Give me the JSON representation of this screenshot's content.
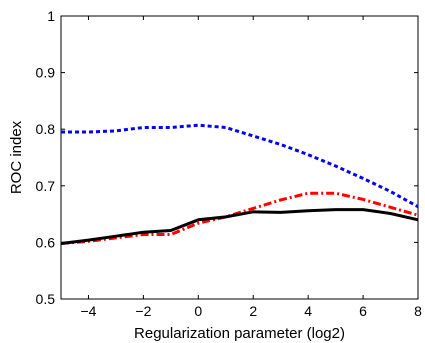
{
  "chart_data": {
    "type": "line",
    "title": "",
    "xlabel": "Regularization parameter (log2)",
    "ylabel": "ROC index",
    "xlim": [
      -5,
      8
    ],
    "ylim": [
      0.5,
      1.0
    ],
    "x_ticks": [
      -4,
      -2,
      0,
      2,
      4,
      6,
      8
    ],
    "y_ticks": [
      0.5,
      0.6,
      0.7,
      0.8,
      0.9,
      1.0
    ],
    "x_tick_labels": [
      "−4",
      "−2",
      "0",
      "2",
      "4",
      "6",
      "8"
    ],
    "y_tick_labels": [
      "0.5",
      "0.6",
      "0.7",
      "0.8",
      "0.9",
      "1"
    ],
    "grid": false,
    "series": [
      {
        "color": "#0000ff",
        "line_style": "dotted",
        "x": [
          -5,
          -4,
          -3,
          -2,
          -1,
          0,
          1,
          2,
          3,
          4,
          5,
          6,
          7,
          8
        ],
        "y": [
          0.795,
          0.795,
          0.797,
          0.803,
          0.803,
          0.807,
          0.803,
          0.788,
          0.773,
          0.755,
          0.735,
          0.713,
          0.69,
          0.663
        ]
      },
      {
        "color": "#ff0000",
        "line_style": "dashdot",
        "x": [
          -5,
          -4,
          -3,
          -2,
          -1,
          0,
          1,
          2,
          3,
          4,
          5,
          6,
          7,
          8
        ],
        "y": [
          0.598,
          0.602,
          0.608,
          0.614,
          0.614,
          0.634,
          0.645,
          0.66,
          0.675,
          0.687,
          0.687,
          0.676,
          0.662,
          0.648
        ]
      },
      {
        "color": "#000000",
        "line_style": "solid",
        "x": [
          -5,
          -4,
          -3,
          -2,
          -1,
          0,
          1,
          2,
          3,
          4,
          5,
          6,
          7,
          8
        ],
        "y": [
          0.598,
          0.604,
          0.611,
          0.618,
          0.621,
          0.64,
          0.645,
          0.654,
          0.653,
          0.656,
          0.658,
          0.658,
          0.651,
          0.64
        ]
      }
    ]
  }
}
